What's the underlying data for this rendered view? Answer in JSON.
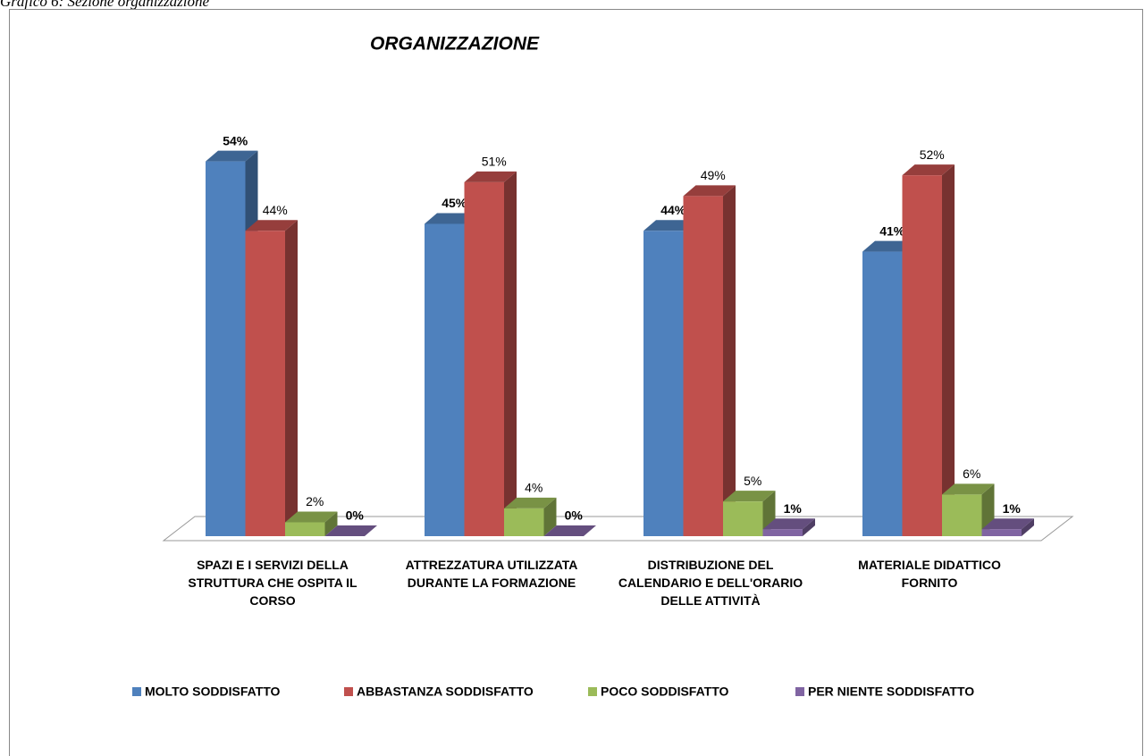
{
  "caption": "Grafico 6: Sezione organizzazione",
  "chart_data": {
    "type": "bar3d",
    "title": "ORGANIZZAZIONE",
    "categories": [
      "SPAZI E I SERVIZI DELLA STRUTTURA CHE OSPITA IL CORSO",
      "ATTREZZATURA UTILIZZATA DURANTE LA FORMAZIONE",
      "DISTRIBUZIONE DEL CALENDARIO E DELL'ORARIO DELLE ATTIVITÀ",
      "MATERIALE DIDATTICO FORNITO"
    ],
    "series": [
      {
        "name": "MOLTO SODDISFATTO",
        "color": "#4f81bd",
        "values": [
          54,
          45,
          44,
          41
        ],
        "value_labels": [
          "54%",
          "45%",
          "44%",
          "41%"
        ]
      },
      {
        "name": "ABBASTANZA SODDISFATTO",
        "color": "#c0504d",
        "values": [
          44,
          51,
          49,
          52
        ],
        "value_labels": [
          "44%",
          "51%",
          "49%",
          "52%"
        ]
      },
      {
        "name": "POCO SODDISFATTO",
        "color": "#9bbb59",
        "values": [
          2,
          4,
          5,
          6
        ],
        "value_labels": [
          "2%",
          "4%",
          "5%",
          "6%"
        ]
      },
      {
        "name": "PER NIENTE SODDISFATTO",
        "color": "#8064a2",
        "values": [
          0,
          0,
          1,
          1
        ],
        "value_labels": [
          "0%",
          "0%",
          "1%",
          "1%"
        ]
      }
    ],
    "ylim": [
      0,
      60
    ],
    "legend": "bottom"
  }
}
